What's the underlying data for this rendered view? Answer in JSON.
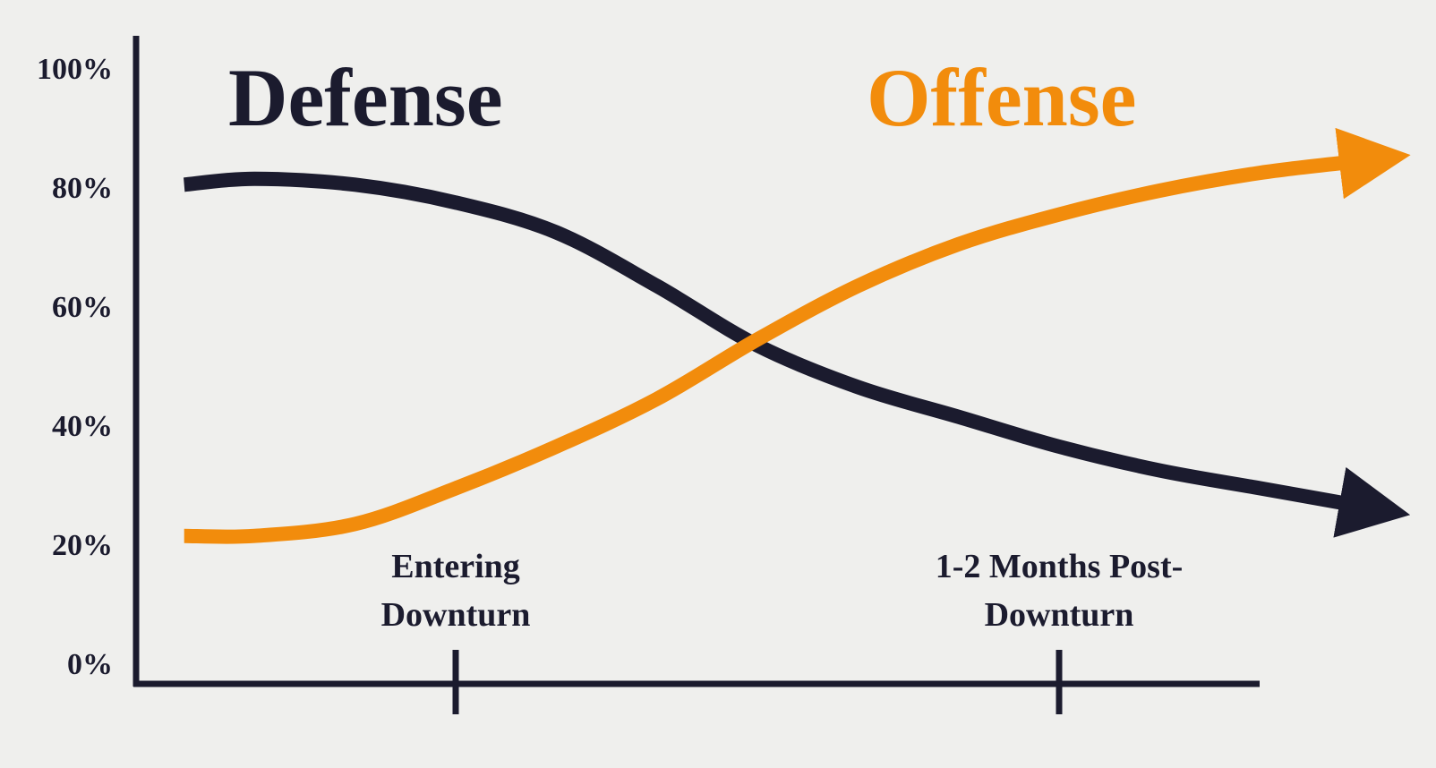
{
  "chart_data": {
    "type": "line",
    "x": [
      0.3,
      1,
      2,
      3,
      4,
      5,
      6,
      7,
      8,
      9,
      10,
      11,
      12
    ],
    "xlim": [
      0,
      12
    ],
    "xticks": [
      {
        "value": 3,
        "label": "Entering Downturn"
      },
      {
        "value": 9,
        "label": "1-2 Months Post-Downturn"
      }
    ],
    "ylim": [
      0,
      100
    ],
    "yticks": [
      {
        "value": 0,
        "label": "0%"
      },
      {
        "value": 20,
        "label": "20%"
      },
      {
        "value": 40,
        "label": "40%"
      },
      {
        "value": 60,
        "label": "60%"
      },
      {
        "value": 80,
        "label": "80%"
      },
      {
        "value": 100,
        "label": "100%"
      }
    ],
    "series": [
      {
        "name": "Defense",
        "color": "#1b1b2e",
        "values": [
          81,
          82,
          81,
          78,
          73,
          64,
          54,
          47,
          42,
          37,
          33,
          30,
          27
        ]
      },
      {
        "name": "Offense",
        "color": "#f28c0c",
        "values": [
          22,
          22,
          24,
          30,
          37,
          45,
          55,
          64,
          71,
          76,
          80,
          83,
          85
        ]
      }
    ]
  }
}
